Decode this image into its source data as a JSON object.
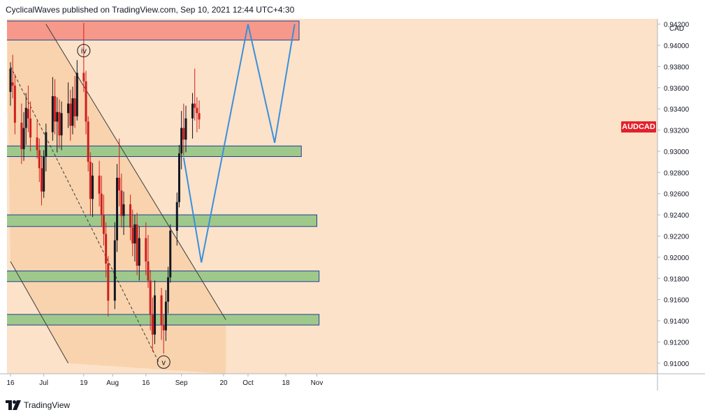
{
  "header": {
    "text": "CyclicalWaves published on TradingView.com, Sep 10, 2021 12:44 UTC+4:30"
  },
  "footer": {
    "brand": "TradingView"
  },
  "symbol": "AUDCAD",
  "currency": "CAD",
  "colors": {
    "background": "#fbe2c9",
    "channel_fill": "#f8d3ad",
    "resistance_zone": "#f6998a",
    "support_zone": "#9fc98a",
    "zone_border": "#1f3f99",
    "projection": "#3a8fdd",
    "candle_up": "#131722",
    "candle_down": "#d01e1e"
  },
  "chart_data": {
    "type": "candlestick",
    "x_ticks": [
      "16",
      "Jul",
      "19",
      "Aug",
      "16",
      "Sep",
      "20",
      "Oct",
      "18",
      "Nov"
    ],
    "y_ticks": [
      "0.91000",
      "0.91200",
      "0.91400",
      "0.91600",
      "0.91800",
      "0.92000",
      "0.92200",
      "0.92400",
      "0.92600",
      "0.92800",
      "0.93000",
      "0.93200",
      "0.93400",
      "0.93600",
      "0.93800",
      "0.94000",
      "0.94200"
    ],
    "ylim": [
      0.909,
      0.9425
    ],
    "wave_labels": [
      {
        "text": "iv",
        "date": "2021-07-19",
        "price": 0.9395
      },
      {
        "text": "v",
        "date": "2021-08-24",
        "price": 0.9101
      }
    ],
    "zones": [
      {
        "kind": "resistance",
        "from": "2021-06-16",
        "to": "2021-10-24",
        "low": 0.9405,
        "high": 0.9423
      },
      {
        "kind": "support",
        "from": "2021-06-16",
        "to": "2021-10-25",
        "low": 0.9295,
        "high": 0.9305
      },
      {
        "kind": "support",
        "from": "2021-06-16",
        "to": "2021-11-01",
        "low": 0.9229,
        "high": 0.924
      },
      {
        "kind": "support",
        "from": "2021-06-16",
        "to": "2021-11-02",
        "low": 0.9177,
        "high": 0.9187
      },
      {
        "kind": "support",
        "from": "2021-06-16",
        "to": "2021-11-02",
        "low": 0.9136,
        "high": 0.9146
      }
    ],
    "projection_path": [
      {
        "date": "2021-09-02",
        "price": 0.9294
      },
      {
        "date": "2021-09-10",
        "price": 0.9195
      },
      {
        "date": "2021-10-01",
        "price": 0.942
      },
      {
        "date": "2021-10-13",
        "price": 0.9308
      },
      {
        "date": "2021-10-22",
        "price": 0.942
      }
    ],
    "channel": {
      "upper": [
        {
          "date": "2021-07-02",
          "price": 0.942
        },
        {
          "date": "2021-09-21",
          "price": 0.9141
        }
      ],
      "lower": [
        {
          "date": "2021-06-16",
          "price": 0.9196
        },
        {
          "date": "2021-07-12",
          "price": 0.91
        }
      ],
      "middle": [
        {
          "date": "2021-06-16",
          "price": 0.938
        },
        {
          "date": "2021-08-22",
          "price": 0.91
        }
      ]
    },
    "candles": [
      [
        "2021-06-16",
        0.9356,
        0.9384,
        0.9343,
        0.9378
      ],
      [
        "2021-06-17",
        0.9365,
        0.9391,
        0.935,
        0.9362
      ],
      [
        "2021-06-18",
        0.9362,
        0.9373,
        0.9316,
        0.9327
      ],
      [
        "2021-06-21",
        0.9327,
        0.9345,
        0.9288,
        0.9302
      ],
      [
        "2021-06-22",
        0.9302,
        0.9337,
        0.9291,
        0.9322
      ],
      [
        "2021-06-23",
        0.9322,
        0.9355,
        0.9306,
        0.9341
      ],
      [
        "2021-06-24",
        0.934,
        0.9362,
        0.9318,
        0.9331
      ],
      [
        "2021-06-25",
        0.9331,
        0.9347,
        0.93,
        0.9313
      ],
      [
        "2021-06-28",
        0.9313,
        0.9329,
        0.9293,
        0.9301
      ],
      [
        "2021-06-29",
        0.9301,
        0.9312,
        0.9271,
        0.9284
      ],
      [
        "2021-06-30",
        0.9284,
        0.9296,
        0.9249,
        0.9262
      ],
      [
        "2021-07-01",
        0.9262,
        0.9301,
        0.9256,
        0.9295
      ],
      [
        "2021-07-02",
        0.9295,
        0.9326,
        0.9281,
        0.9318
      ],
      [
        "2021-07-05",
        0.9318,
        0.937,
        0.931,
        0.9352
      ],
      [
        "2021-07-06",
        0.9352,
        0.9368,
        0.9316,
        0.9328
      ],
      [
        "2021-07-07",
        0.9328,
        0.9351,
        0.9299,
        0.9337
      ],
      [
        "2021-07-08",
        0.9337,
        0.9349,
        0.9303,
        0.9315
      ],
      [
        "2021-07-09",
        0.9315,
        0.9347,
        0.9301,
        0.9336
      ],
      [
        "2021-07-12",
        0.9336,
        0.9365,
        0.9322,
        0.9345
      ],
      [
        "2021-07-13",
        0.9345,
        0.9358,
        0.931,
        0.9324
      ],
      [
        "2021-07-14",
        0.9324,
        0.9361,
        0.9316,
        0.935
      ],
      [
        "2021-07-15",
        0.935,
        0.9371,
        0.9322,
        0.9333
      ],
      [
        "2021-07-16",
        0.9333,
        0.9386,
        0.9329,
        0.9374
      ],
      [
        "2021-07-19",
        0.9374,
        0.9421,
        0.9356,
        0.9366
      ],
      [
        "2021-07-20",
        0.9366,
        0.9376,
        0.9316,
        0.9328
      ],
      [
        "2021-07-21",
        0.9328,
        0.9333,
        0.9281,
        0.929
      ],
      [
        "2021-07-22",
        0.929,
        0.9299,
        0.9239,
        0.9255
      ],
      [
        "2021-07-23",
        0.9255,
        0.9289,
        0.9238,
        0.9277
      ],
      [
        "2021-07-26",
        0.9277,
        0.9291,
        0.9248,
        0.926
      ],
      [
        "2021-07-27",
        0.926,
        0.9277,
        0.9229,
        0.924
      ],
      [
        "2021-07-28",
        0.924,
        0.9259,
        0.9211,
        0.9222
      ],
      [
        "2021-07-29",
        0.9222,
        0.9233,
        0.9181,
        0.9194
      ],
      [
        "2021-07-30",
        0.9194,
        0.9201,
        0.9144,
        0.9159
      ],
      [
        "2021-08-02",
        0.9159,
        0.9233,
        0.9151,
        0.9216
      ],
      [
        "2021-08-03",
        0.9216,
        0.9288,
        0.9205,
        0.9275
      ],
      [
        "2021-08-04",
        0.9275,
        0.9312,
        0.9248,
        0.9263
      ],
      [
        "2021-08-05",
        0.9263,
        0.9279,
        0.9228,
        0.9239
      ],
      [
        "2021-08-06",
        0.9239,
        0.9262,
        0.9221,
        0.925
      ],
      [
        "2021-08-09",
        0.925,
        0.9259,
        0.9216,
        0.9228
      ],
      [
        "2021-08-10",
        0.9228,
        0.9245,
        0.9201,
        0.9213
      ],
      [
        "2021-08-11",
        0.9213,
        0.924,
        0.9196,
        0.9231
      ],
      [
        "2021-08-12",
        0.9231,
        0.9242,
        0.9183,
        0.9192
      ],
      [
        "2021-08-13",
        0.9192,
        0.9229,
        0.9178,
        0.9218
      ],
      [
        "2021-08-16",
        0.9218,
        0.9233,
        0.9183,
        0.9196
      ],
      [
        "2021-08-17",
        0.9196,
        0.9221,
        0.9171,
        0.9178
      ],
      [
        "2021-08-18",
        0.9178,
        0.9188,
        0.9131,
        0.9146
      ],
      [
        "2021-08-19",
        0.9146,
        0.9162,
        0.9111,
        0.9127
      ],
      [
        "2021-08-20",
        0.9127,
        0.9178,
        0.9118,
        0.9164
      ],
      [
        "2021-08-23",
        0.9164,
        0.9171,
        0.9122,
        0.9136
      ],
      [
        "2021-08-24",
        0.9136,
        0.9146,
        0.9109,
        0.9131
      ],
      [
        "2021-08-25",
        0.9131,
        0.9169,
        0.9121,
        0.9158
      ],
      [
        "2021-08-26",
        0.9158,
        0.9191,
        0.9147,
        0.9181
      ],
      [
        "2021-08-27",
        0.9181,
        0.9231,
        0.9176,
        0.9225
      ],
      [
        "2021-08-30",
        0.9225,
        0.9261,
        0.9211,
        0.9252
      ],
      [
        "2021-08-31",
        0.9252,
        0.9306,
        0.9247,
        0.9298
      ],
      [
        "2021-09-01",
        0.9298,
        0.9338,
        0.9283,
        0.9322
      ],
      [
        "2021-09-02",
        0.9322,
        0.9345,
        0.9296,
        0.9311
      ],
      [
        "2021-09-03",
        0.9311,
        0.9343,
        0.9299,
        0.9331
      ],
      [
        "2021-09-06",
        0.9331,
        0.9355,
        0.9312,
        0.9345
      ],
      [
        "2021-09-07",
        0.9345,
        0.9378,
        0.9329,
        0.9341
      ],
      [
        "2021-09-08",
        0.9341,
        0.9351,
        0.9318,
        0.9336
      ],
      [
        "2021-09-09",
        0.9336,
        0.9348,
        0.9321,
        0.933
      ]
    ]
  }
}
